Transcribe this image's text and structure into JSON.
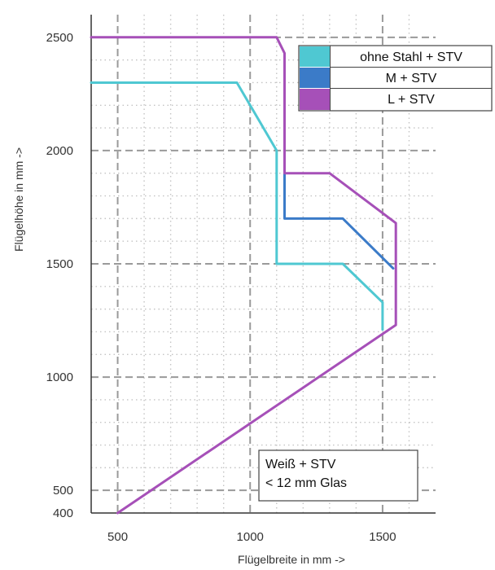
{
  "chart_data": {
    "type": "line",
    "xlabel": "Flügelbreite in mm  ->",
    "ylabel": "Flügelhöhe in mm  ->",
    "xlim": [
      400,
      1700
    ],
    "ylim": [
      400,
      2600
    ],
    "x_ticks": [
      "500",
      "1000",
      "1500"
    ],
    "x_tick_values": [
      500,
      1000,
      1500
    ],
    "y_ticks": [
      "400",
      "500",
      "1000",
      "1500",
      "2000",
      "2500"
    ],
    "y_tick_values": [
      400,
      500,
      1000,
      1500,
      2000,
      2500
    ],
    "grid": "dashed",
    "legend_position": "top-right",
    "series": [
      {
        "name": "ohne Stahl + STV",
        "color": "#4fc8d2",
        "x": [
          400,
          950,
          1100,
          1100,
          1350,
          1500,
          1500
        ],
        "y": [
          2300,
          2300,
          2000,
          1500,
          1500,
          1330,
          1210
        ]
      },
      {
        "name": "M + STV",
        "color": "#3b7bc8",
        "x": [
          1130,
          1130,
          1350,
          1540
        ],
        "y": [
          1900,
          1700,
          1700,
          1480
        ]
      },
      {
        "name": "L + STV",
        "color": "#a650b8",
        "x": [
          400,
          1100,
          1130,
          1130,
          1300,
          1550,
          1550,
          500
        ],
        "y": [
          2500,
          2500,
          2430,
          1900,
          1900,
          1680,
          1230,
          400
        ]
      }
    ],
    "annotation": {
      "lines": [
        "Weiß + STV",
        "< 12 mm Glas"
      ]
    }
  }
}
